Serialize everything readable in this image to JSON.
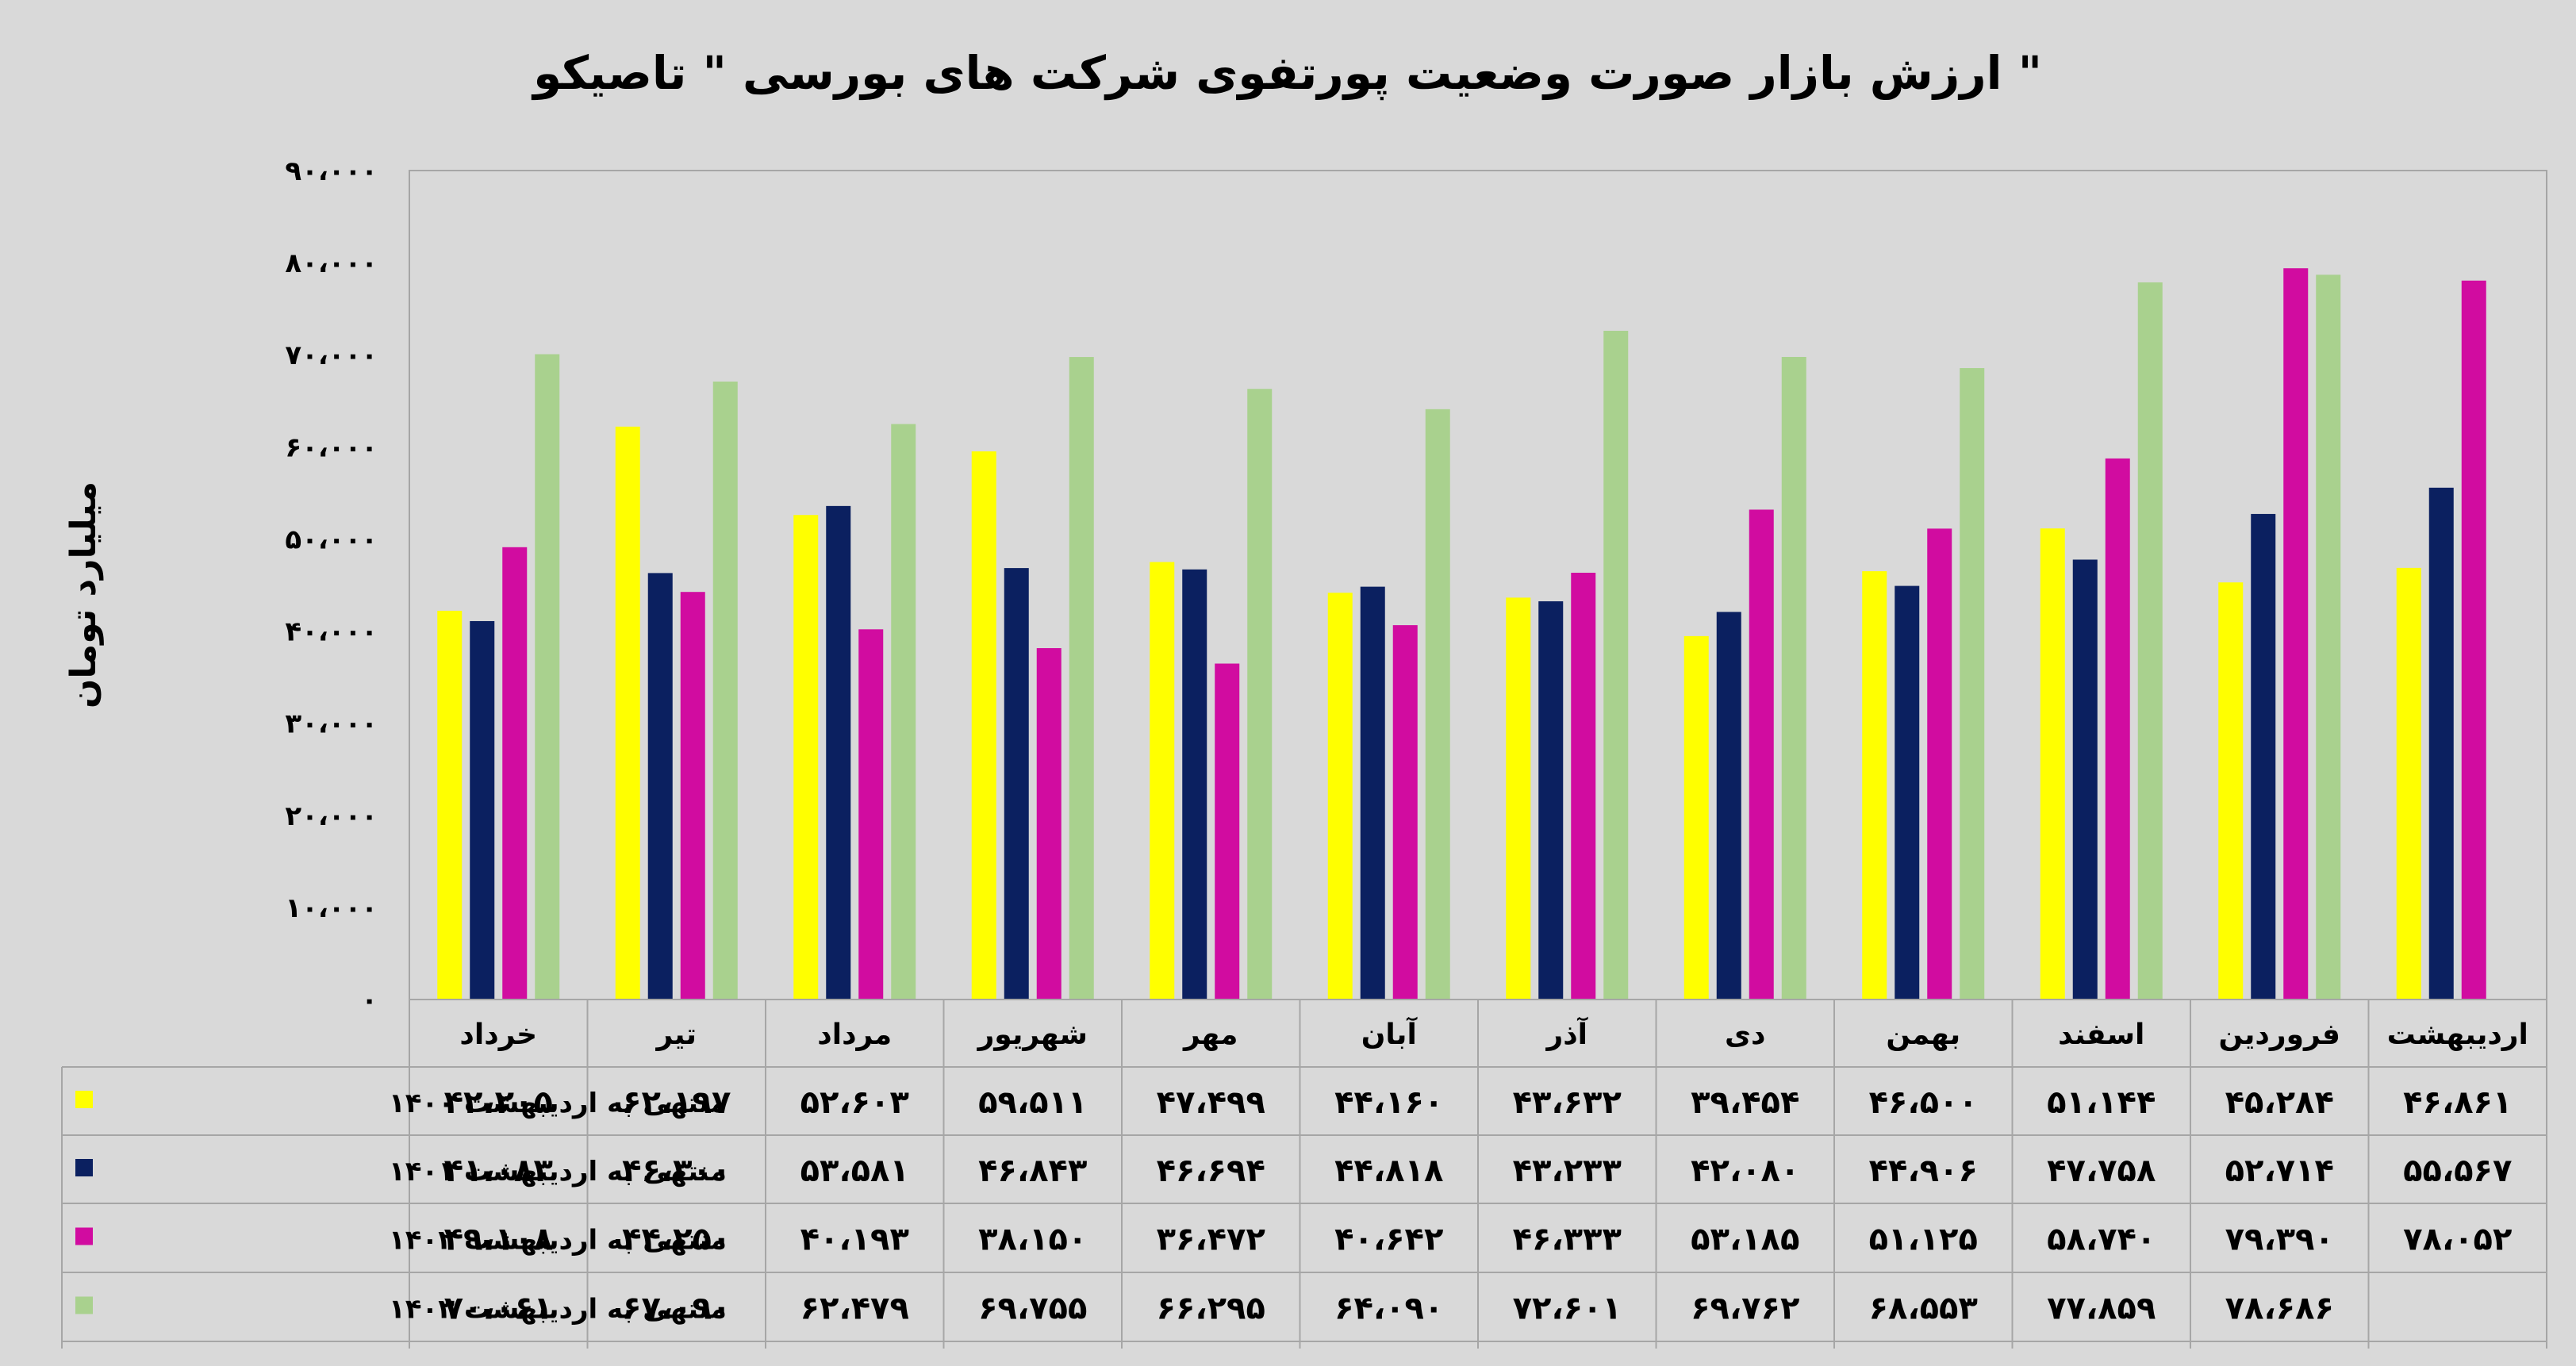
{
  "chart_data": {
    "type": "bar",
    "title": "ارزش بازار صورت وضعیت پورتفوی شرکت های بورسی \"  تاصیکو \"",
    "ylabel": "میلیارد تومان",
    "ylim": [
      0,
      90000
    ],
    "y_ticks": [
      "۰",
      "۱۰،۰۰۰",
      "۲۰،۰۰۰",
      "۳۰،۰۰۰",
      "۴۰،۰۰۰",
      "۵۰،۰۰۰",
      "۶۰،۰۰۰",
      "۷۰،۰۰۰",
      "۸۰،۰۰۰",
      "۹۰،۰۰۰"
    ],
    "grid": false,
    "legend": "data-table-left",
    "categories": [
      "خرداد",
      "تیر",
      "مرداد",
      "شهریور",
      "مهر",
      "آبان",
      "آذر",
      "دی",
      "بهمن",
      "اسفند",
      "فروردین",
      "اردیبهشت"
    ],
    "series": [
      {
        "name": "منتهی به اردیبهشت ۱۴۰۰",
        "color": "#ffff00",
        "values": [
          42205,
          62197,
          52603,
          59511,
          47499,
          44160,
          43632,
          39454,
          46500,
          51144,
          45284,
          46861
        ],
        "labels": [
          "۴۲،۲۰۵",
          "۶۲،۱۹۷",
          "۵۲،۶۰۳",
          "۵۹،۵۱۱",
          "۴۷،۴۹۹",
          "۴۴،۱۶۰",
          "۴۳،۶۳۲",
          "۳۹،۴۵۴",
          "۴۶،۵۰۰",
          "۵۱،۱۴۴",
          "۴۵،۲۸۴",
          "۴۶،۸۶۱"
        ]
      },
      {
        "name": "منتهی به اردیبهشت ۱۴۰۱",
        "color": "#0b2060",
        "values": [
          41083,
          46300,
          53581,
          46843,
          46694,
          44818,
          43233,
          42080,
          44906,
          47758,
          52714,
          55567
        ],
        "labels": [
          "۴۱،۰۸۳",
          "۴۶،۳۰۰",
          "۵۳،۵۸۱",
          "۴۶،۸۴۳",
          "۴۶،۶۹۴",
          "۴۴،۸۱۸",
          "۴۳،۲۳۳",
          "۴۲،۰۸۰",
          "۴۴،۹۰۶",
          "۴۷،۷۵۸",
          "۵۲،۷۱۴",
          "۵۵،۵۶۷"
        ]
      },
      {
        "name": "منتهی به اردیبهشت ۱۴۰۲",
        "color": "#d10ca0",
        "values": [
          49108,
          44250,
          40193,
          38150,
          36472,
          40642,
          46333,
          53185,
          51125,
          58740,
          79390,
          78052
        ],
        "labels": [
          "۴۹،۱۰۸",
          "۴۴،۲۵۰",
          "۴۰،۱۹۳",
          "۳۸،۱۵۰",
          "۳۶،۴۷۲",
          "۴۰،۶۴۲",
          "۴۶،۳۳۳",
          "۵۳،۱۸۵",
          "۵۱،۱۲۵",
          "۵۸،۷۴۰",
          "۷۹،۳۹۰",
          "۷۸،۰۵۲"
        ]
      },
      {
        "name": "منتهی به اردیبهشت ۱۴۰۳",
        "color": "#a9d18e",
        "values": [
          70061,
          67090,
          62479,
          69755,
          66295,
          64090,
          72601,
          69762,
          68553,
          77859,
          78686,
          null
        ],
        "labels": [
          "۷۰،۰۶۱",
          "۶۷،۰۹۰",
          "۶۲،۴۷۹",
          "۶۹،۷۵۵",
          "۶۶،۲۹۵",
          "۶۴،۰۹۰",
          "۷۲،۶۰۱",
          "۶۹،۷۶۲",
          "۶۸،۵۵۳",
          "۷۷،۸۵۹",
          "۷۸،۶۸۶",
          ""
        ]
      }
    ]
  }
}
